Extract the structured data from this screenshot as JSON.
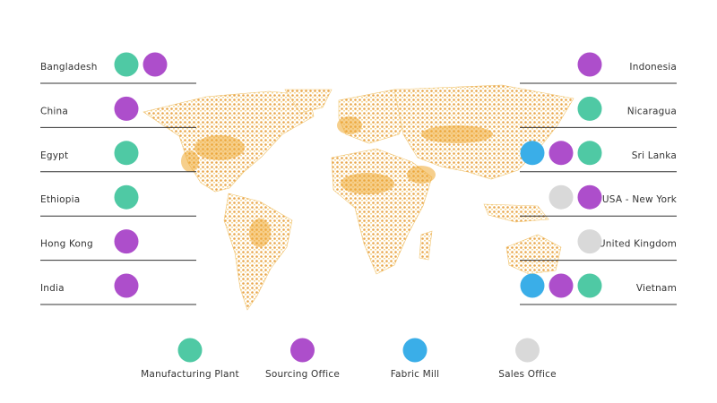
{
  "legend": [
    {
      "label": "Manufacturing Plant",
      "color": "#4fc9a4"
    },
    {
      "label": "Sourcing Office",
      "color": "#ad4ecb"
    },
    {
      "label": "Fabric Mill",
      "color": "#3aaee8"
    },
    {
      "label": "Sales Office",
      "color": "#d9d9d9"
    }
  ],
  "left": [
    {
      "country": "Bangladesh",
      "facilities": [
        0,
        1
      ]
    },
    {
      "country": "China",
      "facilities": [
        1
      ]
    },
    {
      "country": "Egypt",
      "facilities": [
        0
      ]
    },
    {
      "country": "Ethiopia",
      "facilities": [
        0
      ]
    },
    {
      "country": "Hong Kong",
      "facilities": [
        1
      ]
    },
    {
      "country": "India",
      "facilities": [
        1
      ]
    }
  ],
  "right": [
    {
      "country": "Indonesia",
      "facilities": [
        1
      ]
    },
    {
      "country": "Nicaragua",
      "facilities": [
        0
      ]
    },
    {
      "country": "Sri Lanka",
      "facilities": [
        2,
        1,
        0
      ]
    },
    {
      "country": "USA - New York",
      "facilities": [
        3,
        1
      ]
    },
    {
      "country": "United Kingdom",
      "facilities": [
        3
      ]
    },
    {
      "country": "Vietnam",
      "facilities": [
        2,
        1,
        0
      ]
    }
  ]
}
